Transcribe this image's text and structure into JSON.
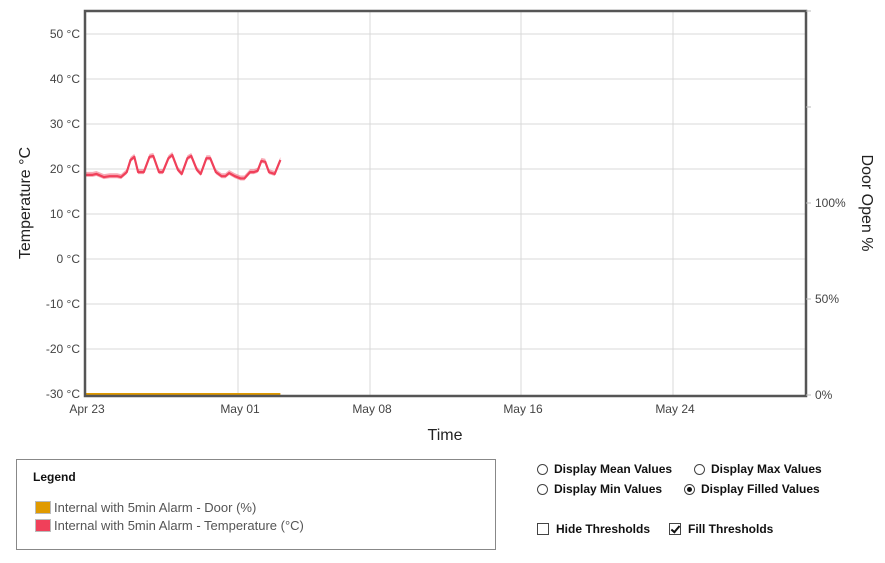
{
  "chart_data": {
    "type": "line",
    "title": "",
    "xlabel": "Time",
    "ylabel": "Temperature °C",
    "y2label": "Door Open %",
    "x_ticks": [
      "Apr 23",
      "May 01",
      "May 08",
      "May 16",
      "May 24"
    ],
    "y_ticks": [
      "50 °C",
      "40 °C",
      "30 °C",
      "20 °C",
      "10 °C",
      "0 °C",
      "-10 °C",
      "-20 °C",
      "-30 °C"
    ],
    "y2_ticks": [
      "100%",
      "50%",
      "0%"
    ],
    "ylim": [
      -30,
      55
    ],
    "y2lim": [
      0,
      200
    ],
    "xlim": [
      "Apr 23",
      "May 31"
    ],
    "grid": true,
    "legend_position": "bottom-left box",
    "series": [
      {
        "name": "Internal with 5min Alarm - Temperature (°C)",
        "color": "#f0405a",
        "axis": "left",
        "style": "line with min/max filled band",
        "x_days_from_apr23": [
          0,
          0.4,
          0.6,
          1.0,
          1.3,
          1.7,
          1.9,
          2.2,
          2.4,
          2.6,
          2.8,
          3.1,
          3.4,
          3.6,
          3.9,
          4.1,
          4.4,
          4.6,
          4.9,
          5.1,
          5.4,
          5.6,
          5.9,
          6.1,
          6.4,
          6.6,
          6.9,
          7.2,
          7.4,
          7.6,
          7.9,
          8.2,
          8.4,
          8.7,
          8.9,
          9.1,
          9.3,
          9.5,
          9.7,
          10.0,
          10.3
        ],
        "values": [
          18.7,
          18.7,
          18.9,
          18.2,
          18.4,
          18.4,
          18.2,
          19.3,
          22.0,
          22.7,
          19.3,
          19.3,
          22.7,
          22.9,
          19.3,
          19.3,
          22.4,
          23.1,
          19.8,
          18.9,
          22.4,
          22.9,
          19.8,
          18.9,
          22.4,
          22.4,
          19.3,
          18.4,
          18.4,
          19.1,
          18.4,
          17.9,
          17.9,
          19.3,
          19.3,
          19.6,
          21.8,
          21.6,
          19.3,
          18.9,
          22.0
        ]
      },
      {
        "name": "Internal with 5min Alarm - Door (%)",
        "color": "#e09a00",
        "axis": "right",
        "x_days_from_apr23": [
          0,
          10.3
        ],
        "values": [
          0,
          0
        ]
      }
    ]
  },
  "axes": {
    "x_title": "Time",
    "y_left_title": "Temperature °C",
    "y_right_title": "Door Open %"
  },
  "legend": {
    "title": "Legend",
    "items": [
      {
        "label": "Internal with 5min Alarm - Door (%)",
        "color": "#e09a00"
      },
      {
        "label": "Internal with 5min Alarm - Temperature (°C)",
        "color": "#f0405a"
      }
    ]
  },
  "controls": {
    "radios": [
      {
        "label": "Display Mean Values",
        "checked": false
      },
      {
        "label": "Display Max Values",
        "checked": false
      },
      {
        "label": "Display Min Values",
        "checked": false
      },
      {
        "label": "Display Filled Values",
        "checked": true
      }
    ],
    "checkboxes": [
      {
        "label": "Hide Thresholds",
        "checked": false
      },
      {
        "label": "Fill Thresholds",
        "checked": true
      }
    ]
  }
}
